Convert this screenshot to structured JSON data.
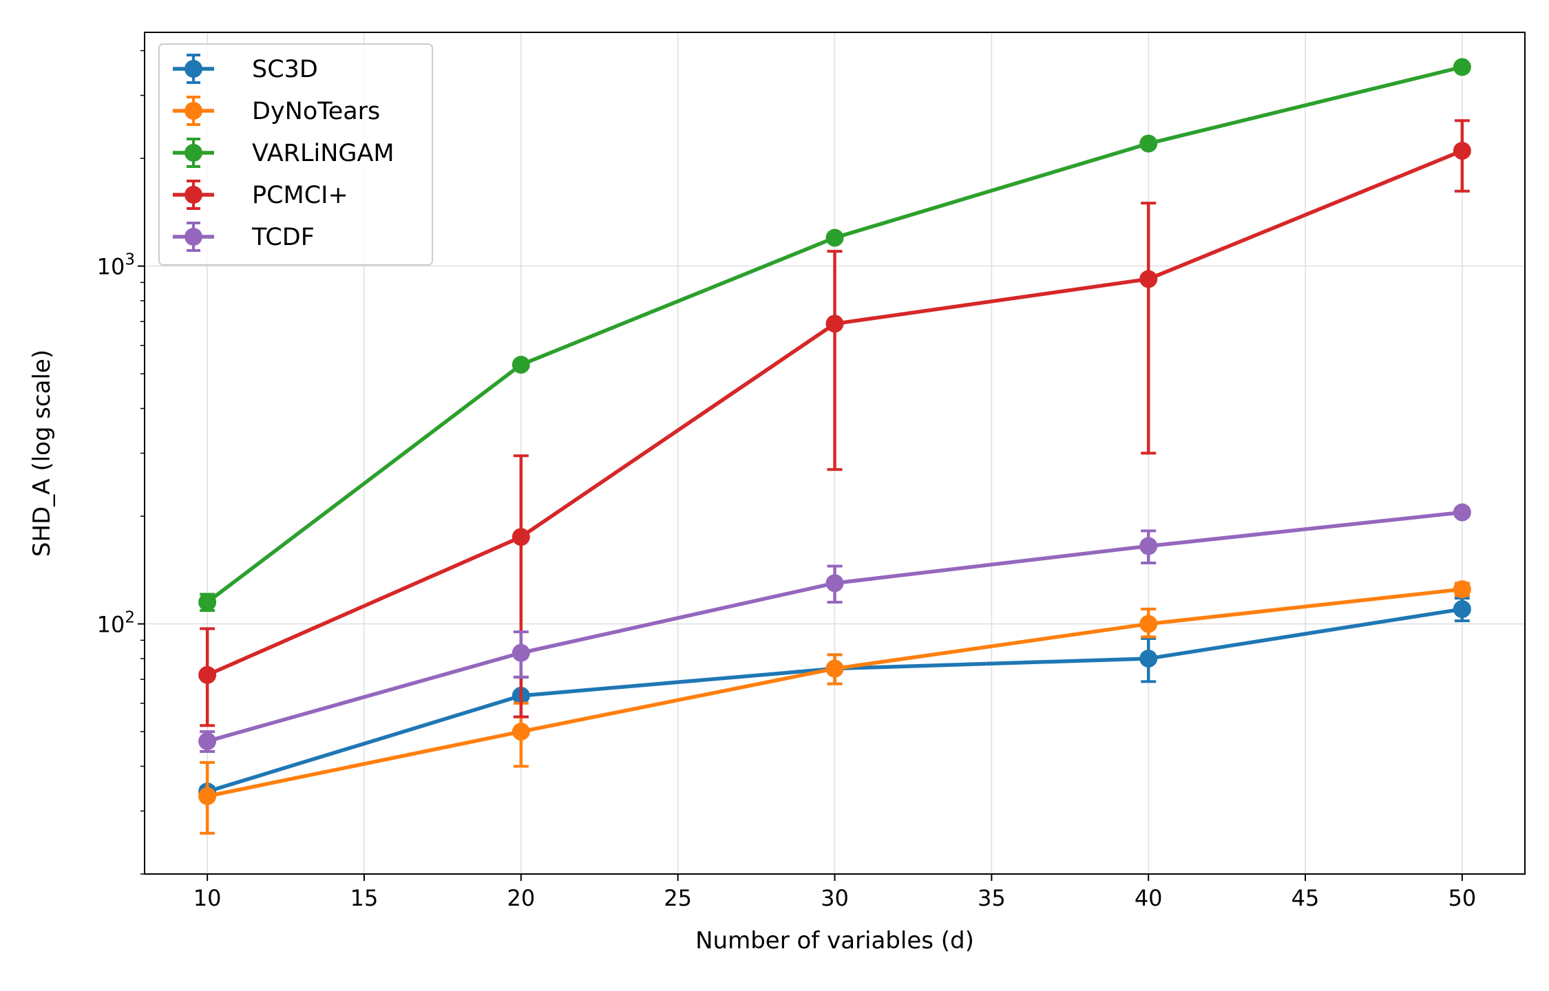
{
  "chart_data": {
    "type": "line",
    "title": "",
    "xlabel": "Number of variables (d)",
    "ylabel": "SHD_A (log scale)",
    "yscale": "log",
    "xlim": [
      8,
      52
    ],
    "ylim": [
      20,
      4500
    ],
    "grid": true,
    "legend_position": "top-left",
    "x": [
      10,
      20,
      30,
      40,
      50
    ],
    "xticks": [
      10,
      15,
      20,
      25,
      30,
      35,
      40,
      45,
      50
    ],
    "xtick_labels": [
      "10",
      "15",
      "20",
      "25",
      "30",
      "35",
      "40",
      "45",
      "50"
    ],
    "ytick_major": [
      100,
      1000
    ],
    "ytick_base": "10",
    "ytick_exponents": [
      "2",
      "3"
    ],
    "series": [
      {
        "name": "SC3D",
        "color": "#1f77b4",
        "values": [
          34,
          63,
          75,
          80,
          110
        ],
        "err_low": [
          1,
          8,
          7,
          11,
          8
        ],
        "err_high": [
          1,
          8,
          7,
          11,
          8
        ]
      },
      {
        "name": "DyNoTears",
        "color": "#ff7f0e",
        "values": [
          33,
          50,
          75,
          100,
          125
        ],
        "err_low": [
          7,
          10,
          7,
          8,
          5
        ],
        "err_high": [
          8,
          10,
          7,
          10,
          5
        ]
      },
      {
        "name": "VARLiNGAM",
        "color": "#2ca02c",
        "values": [
          115,
          530,
          1200,
          2200,
          3600
        ],
        "err_low": [
          6,
          10,
          20,
          40,
          50
        ],
        "err_high": [
          6,
          10,
          20,
          40,
          50
        ]
      },
      {
        "name": "PCMCI+",
        "color": "#d62728",
        "values": [
          72,
          175,
          690,
          920,
          2100
        ],
        "err_low": [
          20,
          120,
          420,
          620,
          480
        ],
        "err_high": [
          25,
          120,
          410,
          580,
          450
        ]
      },
      {
        "name": "TCDF",
        "color": "#9467bd",
        "values": [
          47,
          83,
          130,
          165,
          205
        ],
        "err_low": [
          3,
          12,
          15,
          17,
          5
        ],
        "err_high": [
          3,
          12,
          15,
          17,
          5
        ]
      }
    ]
  }
}
